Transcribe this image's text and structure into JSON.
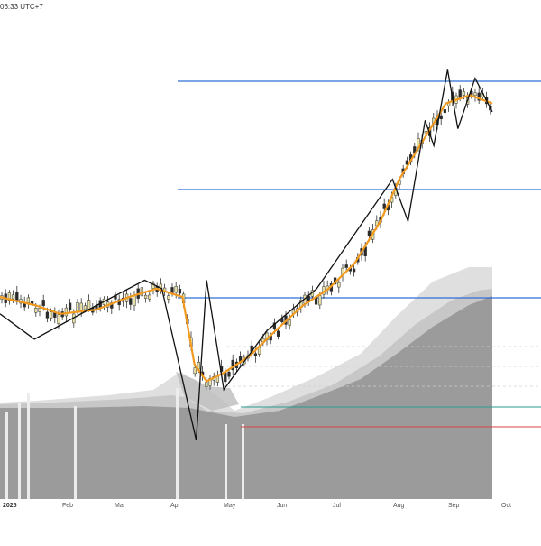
{
  "header": {
    "clock_text": "06:33 UTC+7"
  },
  "time_axis": {
    "labels": [
      {
        "text": "2025",
        "is_year": true
      },
      {
        "text": "Feb",
        "is_year": false
      },
      {
        "text": "Mar",
        "is_year": false
      },
      {
        "text": "Apr",
        "is_year": false
      },
      {
        "text": "May",
        "is_year": false
      },
      {
        "text": "Jun",
        "is_year": false
      },
      {
        "text": "Jul",
        "is_year": false
      },
      {
        "text": "Aug",
        "is_year": false
      },
      {
        "text": "Sep",
        "is_year": false
      },
      {
        "text": "Oct",
        "is_year": false
      }
    ]
  },
  "colors": {
    "ema_line": "#f29a1f",
    "zigzag": "#111111",
    "candle_up": "#e8e2a6",
    "candle_down": "#2b2b2b",
    "resistance_lines": "#2f6fd6",
    "teal_line": "#2a9d8f",
    "red_line": "#d64545",
    "area_dark": "#9b9b9b",
    "area_light": "#d9d9d9",
    "volume_bars": "#b8b8b8"
  },
  "chart_data": {
    "type": "line",
    "title": "",
    "x_unit": "date",
    "series": [
      {
        "role": "price-ema",
        "points": [
          [
            "2024-12-16",
            0.44
          ],
          [
            "2025-01-06",
            0.43
          ],
          [
            "2025-01-20",
            0.42
          ],
          [
            "2025-02-10",
            0.425
          ],
          [
            "2025-03-01",
            0.44
          ],
          [
            "2025-03-17",
            0.45
          ],
          [
            "2025-04-01",
            0.44
          ],
          [
            "2025-04-08",
            0.36
          ],
          [
            "2025-04-15",
            0.34
          ],
          [
            "2025-04-25",
            0.35
          ],
          [
            "2025-05-10",
            0.37
          ],
          [
            "2025-05-25",
            0.4
          ],
          [
            "2025-06-10",
            0.43
          ],
          [
            "2025-06-25",
            0.45
          ],
          [
            "2025-07-10",
            0.48
          ],
          [
            "2025-07-25",
            0.53
          ],
          [
            "2025-08-05",
            0.58
          ],
          [
            "2025-08-20",
            0.63
          ],
          [
            "2025-09-01",
            0.67
          ],
          [
            "2025-09-15",
            0.68
          ],
          [
            "2025-09-28",
            0.67
          ]
        ]
      },
      {
        "role": "zigzag",
        "points": [
          [
            "2024-12-16",
            0.42
          ],
          [
            "2025-01-05",
            0.39
          ],
          [
            "2025-02-10",
            0.43
          ],
          [
            "2025-03-10",
            0.46
          ],
          [
            "2025-03-20",
            0.45
          ],
          [
            "2025-04-09",
            0.27
          ],
          [
            "2025-04-15",
            0.46
          ],
          [
            "2025-04-25",
            0.33
          ],
          [
            "2025-05-20",
            0.4
          ],
          [
            "2025-06-18",
            0.45
          ],
          [
            "2025-08-01",
            0.58
          ],
          [
            "2025-08-10",
            0.53
          ],
          [
            "2025-08-20",
            0.65
          ],
          [
            "2025-08-25",
            0.62
          ],
          [
            "2025-09-02",
            0.71
          ],
          [
            "2025-09-08",
            0.64
          ],
          [
            "2025-09-18",
            0.7
          ],
          [
            "2025-09-28",
            0.66
          ]
        ]
      }
    ],
    "horizontal_levels": [
      {
        "color": "blue",
        "level": 1
      },
      {
        "color": "blue",
        "level": 2
      },
      {
        "color": "blue",
        "level": 3
      },
      {
        "color": "teal",
        "level": 4
      },
      {
        "color": "red",
        "level": 5
      }
    ],
    "grid": false
  }
}
